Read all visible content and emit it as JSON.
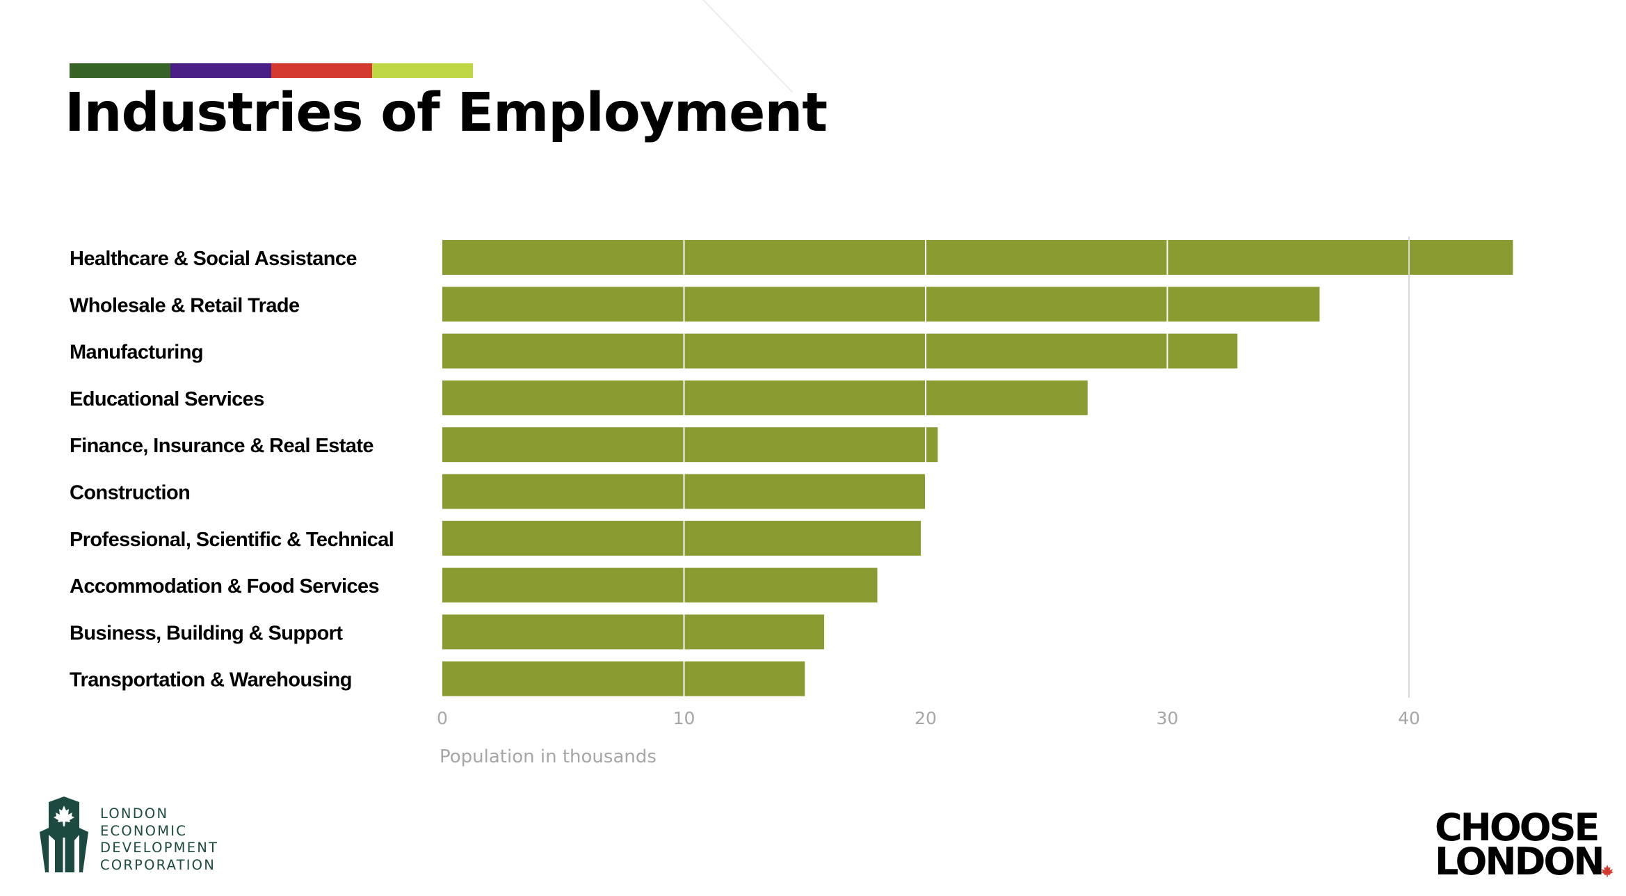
{
  "title": "Industries of Employment",
  "colors": {
    "strip": [
      "#376426",
      "#4a1f86",
      "#d43a30",
      "#bfd744"
    ],
    "bar": "#8a9b32",
    "grid": "#d9d9d9",
    "logo_green": "#1d4a40",
    "maple_red": "#d43a30"
  },
  "chart_data": {
    "type": "bar",
    "orientation": "horizontal",
    "categories": [
      "Healthcare & Social Assistance",
      "Wholesale & Retail Trade",
      "Manufacturing",
      "Educational Services",
      "Finance, Insurance & Real Estate",
      "Construction",
      "Professional, Scientific & Technical",
      "Accommodation & Food Services",
      "Business, Building & Support",
      "Transportation & Warehousing"
    ],
    "values": [
      44.3,
      36.3,
      32.9,
      26.7,
      20.5,
      20.0,
      19.8,
      18.0,
      15.8,
      15.0
    ],
    "ticks": [
      "0",
      "10",
      "20",
      "30",
      "40"
    ],
    "xlim": [
      0,
      50
    ],
    "xlabel": "Population in thousands",
    "ylabel": "",
    "grid": true,
    "legend": "none"
  },
  "footer": {
    "ledc_lines": [
      "LONDON",
      "ECONOMIC",
      "DEVELOPMENT",
      "CORPORATION"
    ],
    "choose_lines": [
      "CHOOSE",
      "LONDON"
    ]
  }
}
